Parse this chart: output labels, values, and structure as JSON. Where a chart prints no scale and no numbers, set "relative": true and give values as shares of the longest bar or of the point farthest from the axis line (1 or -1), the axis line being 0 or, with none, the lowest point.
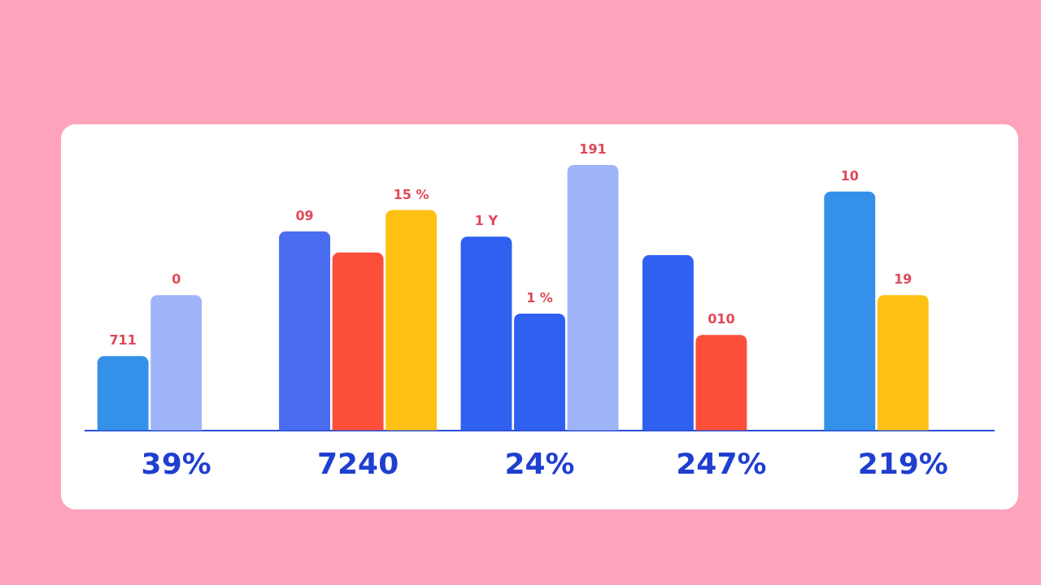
{
  "chart_data": {
    "type": "bar",
    "relative": true,
    "categories": [
      "39%",
      "7240",
      "24%",
      "247%",
      "219%"
    ],
    "series": [
      {
        "values": [
          0.28,
          0.75,
          0.73,
          0.66,
          0.9
        ],
        "colors": [
          "#3590ea",
          "#4a6cf0",
          "#3060f0",
          "#3060f0",
          "#3590ea"
        ]
      },
      {
        "values": [
          0.51,
          0.67,
          0.44,
          0.36,
          0.51
        ],
        "colors": [
          "#a0b4fa",
          "#fb4f3a",
          "#3060f0",
          "#fb4f3a",
          "#fcc114"
        ]
      },
      {
        "values": [
          null,
          0.83,
          1.0,
          null,
          null
        ],
        "colors": [
          "#a0b4fa",
          "#fcc114",
          "#a0b4fa",
          "#a0b4fa",
          "#a0b4fa"
        ]
      }
    ],
    "annotations": [
      "711",
      "0",
      "09",
      "15 %",
      "1 Y",
      "1 %",
      "191",
      "010",
      "10",
      "19"
    ],
    "legend": false,
    "grid": false
  }
}
